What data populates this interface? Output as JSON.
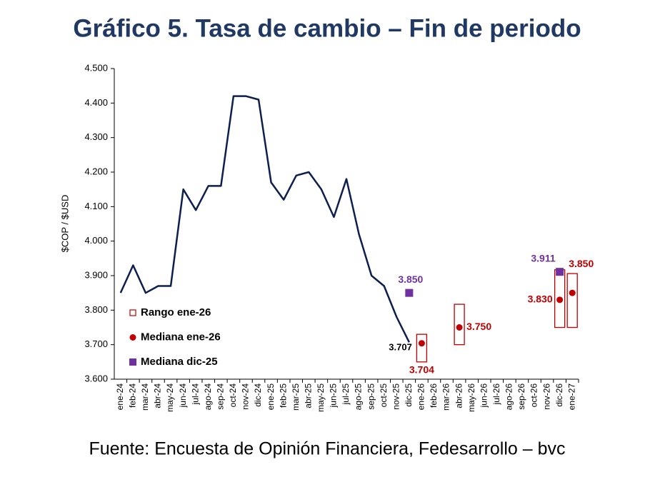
{
  "chart_data": {
    "type": "line",
    "title": "Gráfico 5. Tasa de cambio – Fin de periodo",
    "y_label": "$COP / $USD",
    "source": "Fuente: Encuesta de Opinión Financiera, Fedesarrollo – bvc",
    "categories": [
      "ene-24",
      "feb-24",
      "mar-24",
      "abr-24",
      "may-24",
      "jun-24",
      "jul-24",
      "ago-24",
      "sep-24",
      "oct-24",
      "nov-24",
      "dic-24",
      "ene-25",
      "feb-25",
      "mar-25",
      "abr-25",
      "may-25",
      "jun-25",
      "jul-25",
      "ago-25",
      "sep-25",
      "oct-25",
      "nov-25",
      "dic-25",
      "ene-26",
      "feb-26",
      "mar-26",
      "abr-26",
      "may-26",
      "jun-26",
      "jul-26",
      "ago-26",
      "sep-26",
      "oct-26",
      "nov-26",
      "dic-26",
      "ene-27"
    ],
    "ylim": [
      3600,
      4500
    ],
    "yticks": [
      {
        "value": 3600,
        "label": "3.600"
      },
      {
        "value": 3700,
        "label": "3.700"
      },
      {
        "value": 3800,
        "label": "3.800"
      },
      {
        "value": 3900,
        "label": "3.900"
      },
      {
        "value": 4000,
        "label": "4.000"
      },
      {
        "value": 4100,
        "label": "4.100"
      },
      {
        "value": 4200,
        "label": "4.200"
      },
      {
        "value": 4300,
        "label": "4.300"
      },
      {
        "value": 4400,
        "label": "4.400"
      },
      {
        "value": 4500,
        "label": "4.500"
      }
    ],
    "line": {
      "color": "#0d1f4f",
      "values": [
        3850,
        3930,
        3850,
        3870,
        3870,
        4150,
        4090,
        4160,
        4160,
        4420,
        4420,
        4410,
        4170,
        4120,
        4190,
        4200,
        4150,
        4070,
        4180,
        4020,
        3900,
        3870,
        3780,
        3707,
        null,
        null,
        null,
        null,
        null,
        null,
        null,
        null,
        null,
        null,
        null,
        null,
        null
      ],
      "value_labels": [
        null,
        null,
        null,
        null,
        null,
        null,
        null,
        null,
        null,
        null,
        null,
        null,
        null,
        null,
        null,
        null,
        null,
        null,
        null,
        null,
        null,
        null,
        null,
        "3.707",
        null,
        null,
        null,
        null,
        null,
        null,
        null,
        null,
        null,
        null,
        null,
        null,
        null
      ]
    },
    "series": [
      {
        "name": "Rango ene-26",
        "marker": "range",
        "color": "#c00000",
        "low": [
          null,
          null,
          null,
          null,
          null,
          null,
          null,
          null,
          null,
          null,
          null,
          null,
          null,
          null,
          null,
          null,
          null,
          null,
          null,
          null,
          null,
          null,
          null,
          null,
          3650,
          null,
          null,
          3700,
          null,
          null,
          null,
          null,
          null,
          null,
          null,
          3750,
          3750
        ],
        "high": [
          null,
          null,
          null,
          null,
          null,
          null,
          null,
          null,
          null,
          null,
          null,
          null,
          null,
          null,
          null,
          null,
          null,
          null,
          null,
          null,
          null,
          null,
          null,
          null,
          3730,
          null,
          null,
          3817,
          null,
          null,
          null,
          null,
          null,
          null,
          null,
          3917,
          3906
        ]
      },
      {
        "name": "Mediana ene-26",
        "marker": "circle",
        "color": "#c00000",
        "values": [
          null,
          null,
          null,
          null,
          null,
          null,
          null,
          null,
          null,
          null,
          null,
          null,
          null,
          null,
          null,
          null,
          null,
          null,
          null,
          null,
          null,
          null,
          null,
          null,
          3704,
          null,
          null,
          3750,
          null,
          null,
          null,
          null,
          null,
          null,
          null,
          3830,
          3850
        ],
        "value_labels": [
          null,
          null,
          null,
          null,
          null,
          null,
          null,
          null,
          null,
          null,
          null,
          null,
          null,
          null,
          null,
          null,
          null,
          null,
          null,
          null,
          null,
          null,
          null,
          null,
          "3.704",
          null,
          null,
          "3.750",
          null,
          null,
          null,
          null,
          null,
          null,
          null,
          "3.830",
          "3.850"
        ]
      },
      {
        "name": "Mediana dic-25",
        "marker": "square",
        "color": "#7030a0",
        "values": [
          null,
          null,
          null,
          null,
          null,
          null,
          null,
          null,
          null,
          null,
          null,
          null,
          null,
          null,
          null,
          null,
          null,
          null,
          null,
          null,
          null,
          null,
          null,
          3850,
          null,
          null,
          null,
          null,
          null,
          null,
          null,
          null,
          null,
          null,
          null,
          3911,
          null
        ],
        "value_labels": [
          null,
          null,
          null,
          null,
          null,
          null,
          null,
          null,
          null,
          null,
          null,
          null,
          null,
          null,
          null,
          null,
          null,
          null,
          null,
          null,
          null,
          null,
          null,
          "3.850",
          null,
          null,
          null,
          null,
          null,
          null,
          null,
          null,
          null,
          null,
          null,
          "3.911",
          null
        ]
      }
    ]
  }
}
